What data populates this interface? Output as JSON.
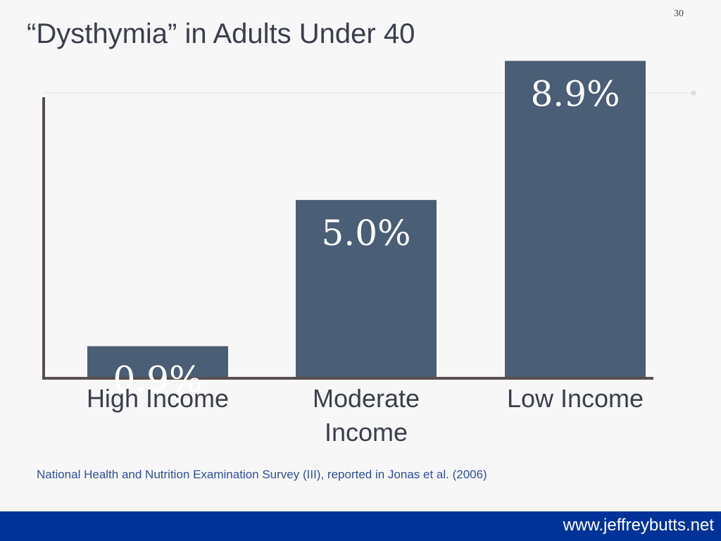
{
  "slide": {
    "number": "30",
    "title": "“Dysthymia” in Adults Under 40",
    "citation": "National Health and Nutrition Examination Survey (III), reported in Jonas et al. (2006)",
    "footer_url": "www.jeffreybutts.net"
  },
  "colors": {
    "bar": "#4a5e75",
    "axis": "#5a4f4f",
    "footer": "#003399",
    "citation": "#2e4f9a"
  },
  "chart_data": {
    "type": "bar",
    "categories": [
      "High Income",
      "Moderate Income",
      "Low Income"
    ],
    "values": [
      0.9,
      5.0,
      8.9
    ],
    "data_labels": [
      "0.9%",
      "5.0%",
      "8.9%"
    ],
    "title": "",
    "xlabel": "",
    "ylabel": "",
    "ylim": [
      0,
      8
    ],
    "grid": true,
    "legend": "none"
  }
}
